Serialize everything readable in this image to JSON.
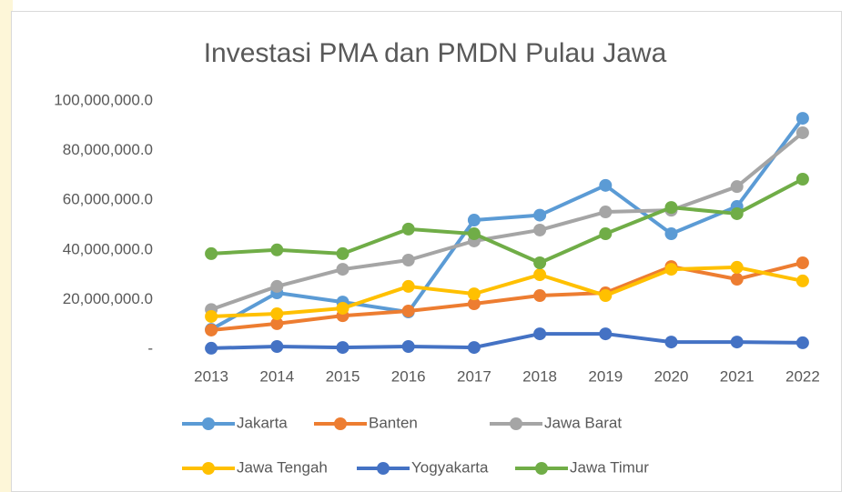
{
  "chart_data": {
    "type": "line",
    "title": "Investasi PMA dan PMDN Pulau Jawa",
    "x": [
      2013,
      2014,
      2015,
      2016,
      2017,
      2018,
      2019,
      2020,
      2021,
      2022
    ],
    "series": [
      {
        "name": "Jakarta",
        "color": "#5b9bd5",
        "values": [
          8000000,
          22700000,
          19000000,
          15000000,
          52000000,
          54000000,
          66000000,
          46500000,
          57500000,
          93000000
        ]
      },
      {
        "name": "Banten",
        "color": "#ed7d31",
        "values": [
          7700000,
          10300000,
          13500000,
          15400000,
          18300000,
          21600000,
          22700000,
          33300000,
          28200000,
          34800000
        ]
      },
      {
        "name": "Jawa Barat",
        "color": "#a5a5a5",
        "values": [
          16000000,
          25300000,
          32200000,
          35900000,
          43600000,
          48000000,
          55300000,
          56000000,
          65500000,
          87200000
        ]
      },
      {
        "name": "Jawa Tengah",
        "color": "#ffc000",
        "values": [
          13200000,
          14300000,
          16500000,
          25300000,
          22300000,
          30000000,
          21600000,
          32200000,
          33000000,
          27500000
        ]
      },
      {
        "name": "Yogyakarta",
        "color": "#4472c4",
        "values": [
          400000,
          1100000,
          700000,
          1100000,
          700000,
          6200000,
          6200000,
          2900000,
          2900000,
          2600000
        ]
      },
      {
        "name": "Jawa Timur",
        "color": "#70ad47",
        "values": [
          38500000,
          40000000,
          38500000,
          48400000,
          46500000,
          34800000,
          46500000,
          57100000,
          54600000,
          68500000
        ]
      }
    ],
    "ylim": [
      0,
      100000000
    ],
    "yticks": [
      {
        "value": 0,
        "label": "-"
      },
      {
        "value": 20000000,
        "label": "20,000,000.0"
      },
      {
        "value": 40000000,
        "label": "40,000,000.0"
      },
      {
        "value": 60000000,
        "label": "60,000,000.0"
      },
      {
        "value": 80000000,
        "label": "80,000,000.0"
      },
      {
        "value": 100000000,
        "label": "100,000,000.0"
      }
    ],
    "grid": false,
    "legend": "bottom"
  }
}
